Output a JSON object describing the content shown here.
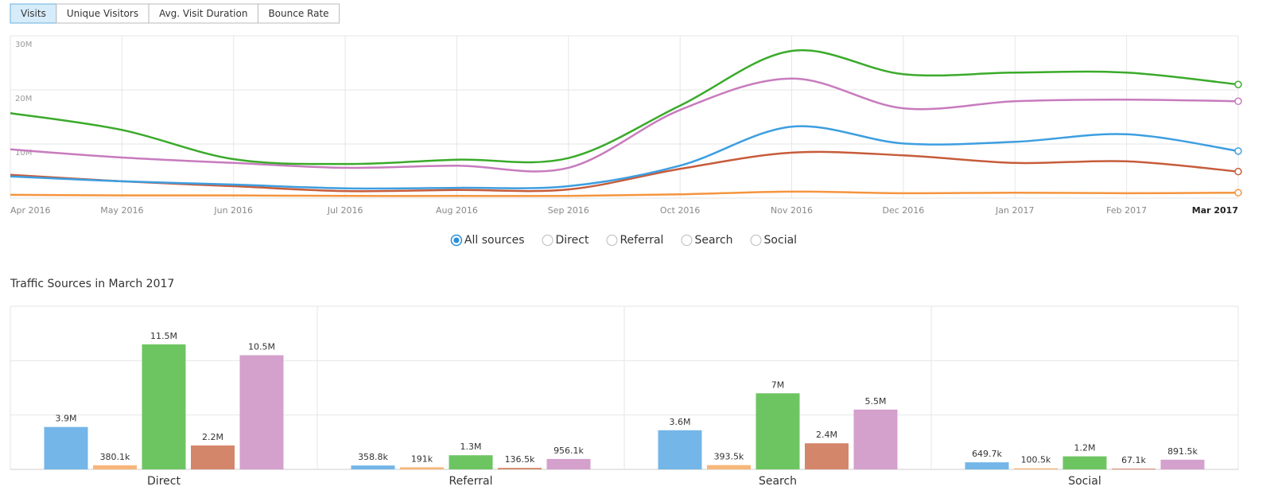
{
  "tabs": {
    "items": [
      "Visits",
      "Unique Visitors",
      "Avg. Visit Duration",
      "Bounce Rate"
    ],
    "active": 0
  },
  "source_filter": {
    "options": [
      "All sources",
      "Direct",
      "Referral",
      "Search",
      "Social"
    ],
    "selected": 0
  },
  "chart_data": [
    {
      "type": "line",
      "categories": [
        "Apr 2016",
        "May 2016",
        "Jun 2016",
        "Jul 2016",
        "Aug 2016",
        "Sep 2016",
        "Oct 2016",
        "Nov 2016",
        "Dec 2016",
        "Jan 2017",
        "Feb 2017",
        "Mar 2017"
      ],
      "ylim": [
        0,
        30000000
      ],
      "yticks": [
        {
          "value": 10000000,
          "label": "10M"
        },
        {
          "value": 20000000,
          "label": "20M"
        },
        {
          "value": 30000000,
          "label": "30M"
        }
      ],
      "grid": true,
      "series": [
        {
          "color": "#f5953f",
          "values": [
            600000,
            500000,
            500000,
            400000,
            400000,
            400000,
            700000,
            1200000,
            900000,
            1000000,
            900000,
            1000000
          ]
        },
        {
          "color": "#c65c3b",
          "values": [
            4300000,
            3100000,
            2200000,
            1300000,
            1500000,
            1600000,
            5400000,
            8400000,
            7900000,
            6500000,
            6800000,
            4900000
          ]
        },
        {
          "color": "#3d9ee0",
          "values": [
            4000000,
            3100000,
            2500000,
            1800000,
            1900000,
            2200000,
            6000000,
            13200000,
            10100000,
            10400000,
            11800000,
            8700000
          ]
        },
        {
          "color": "#c77bbd",
          "values": [
            9000000,
            7500000,
            6500000,
            5600000,
            6000000,
            5600000,
            16300000,
            22100000,
            16600000,
            17900000,
            18200000,
            17900000
          ]
        },
        {
          "color": "#3aaa2a",
          "values": [
            15700000,
            12600000,
            7200000,
            6300000,
            7100000,
            7400000,
            17100000,
            27200000,
            22900000,
            23200000,
            23200000,
            21000000
          ]
        }
      ]
    },
    {
      "type": "bar",
      "title": "Traffic Sources in March 2017",
      "categories": [
        "Direct",
        "Referral",
        "Search",
        "Social"
      ],
      "ylim": [
        0,
        15000000
      ],
      "yticks": [
        0,
        5000000,
        10000000,
        15000000
      ],
      "grid": true,
      "series": [
        {
          "color": "#74b6e8",
          "values": [
            3900000,
            358800,
            3600000,
            649700
          ],
          "value_labels": [
            "3.9M",
            "358.8k",
            "3.6M",
            "649.7k"
          ]
        },
        {
          "color": "#f7b77a",
          "values": [
            380100,
            191000,
            393500,
            100500
          ],
          "value_labels": [
            "380.1k",
            "191k",
            "393.5k",
            "100.5k"
          ]
        },
        {
          "color": "#6dc562",
          "values": [
            11500000,
            1300000,
            7000000,
            1200000
          ],
          "value_labels": [
            "11.5M",
            "1.3M",
            "7M",
            "1.2M"
          ]
        },
        {
          "color": "#d4866a",
          "values": [
            2200000,
            136500,
            2400000,
            67100
          ],
          "value_labels": [
            "2.2M",
            "136.5k",
            "2.4M",
            "67.1k"
          ]
        },
        {
          "color": "#d4a0cc",
          "values": [
            10500000,
            956100,
            5500000,
            891500
          ],
          "value_labels": [
            "10.5M",
            "956.1k",
            "5.5M",
            "891.5k"
          ]
        }
      ]
    }
  ]
}
